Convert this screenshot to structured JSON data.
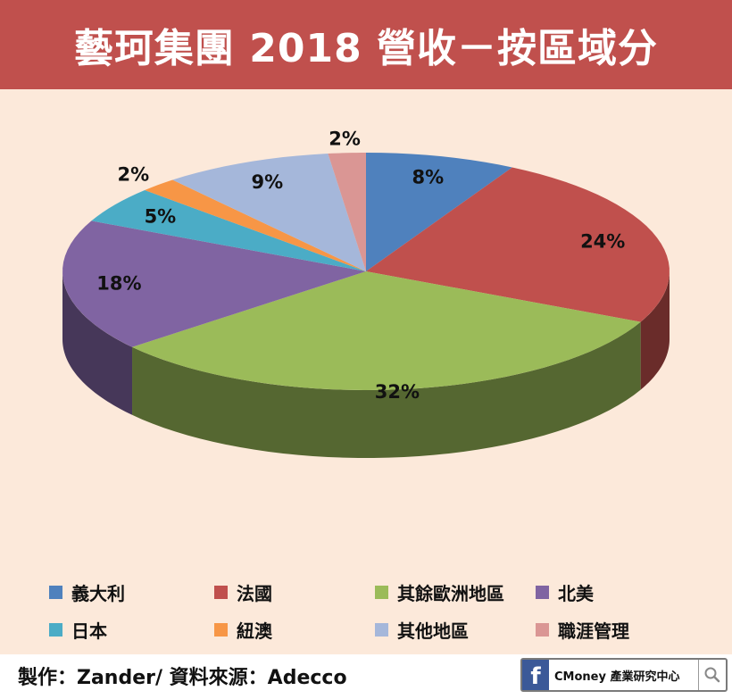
{
  "header": {
    "title": "藝珂集團 2018 營收－按區域分"
  },
  "chart_data": {
    "type": "pie",
    "title": "藝珂集團 2018 營收－按區域分",
    "slices": [
      {
        "label": "義大利",
        "value": 8,
        "display": "8%",
        "color": "#4f81bd"
      },
      {
        "label": "法國",
        "value": 24,
        "display": "24%",
        "color": "#c0504d"
      },
      {
        "label": "其餘歐洲地區",
        "value": 32,
        "display": "32%",
        "color": "#9bbb59"
      },
      {
        "label": "北美",
        "value": 18,
        "display": "18%",
        "color": "#8064a2"
      },
      {
        "label": "日本",
        "value": 5,
        "display": "5%",
        "color": "#4bacc6"
      },
      {
        "label": "紐澳",
        "value": 2,
        "display": "2%",
        "color": "#f79646"
      },
      {
        "label": "其他地區",
        "value": 9,
        "display": "9%",
        "color": "#a5b7da"
      },
      {
        "label": "職涯管理",
        "value": 2,
        "display": "2%",
        "color": "#da9694"
      }
    ],
    "legend_position": "bottom"
  },
  "footer": {
    "source": "製作：Zander/ 資料來源：Adecco",
    "brand": "CMoney 產業研究中心",
    "brand_icon": "facebook-icon",
    "search_icon": "search-icon"
  }
}
